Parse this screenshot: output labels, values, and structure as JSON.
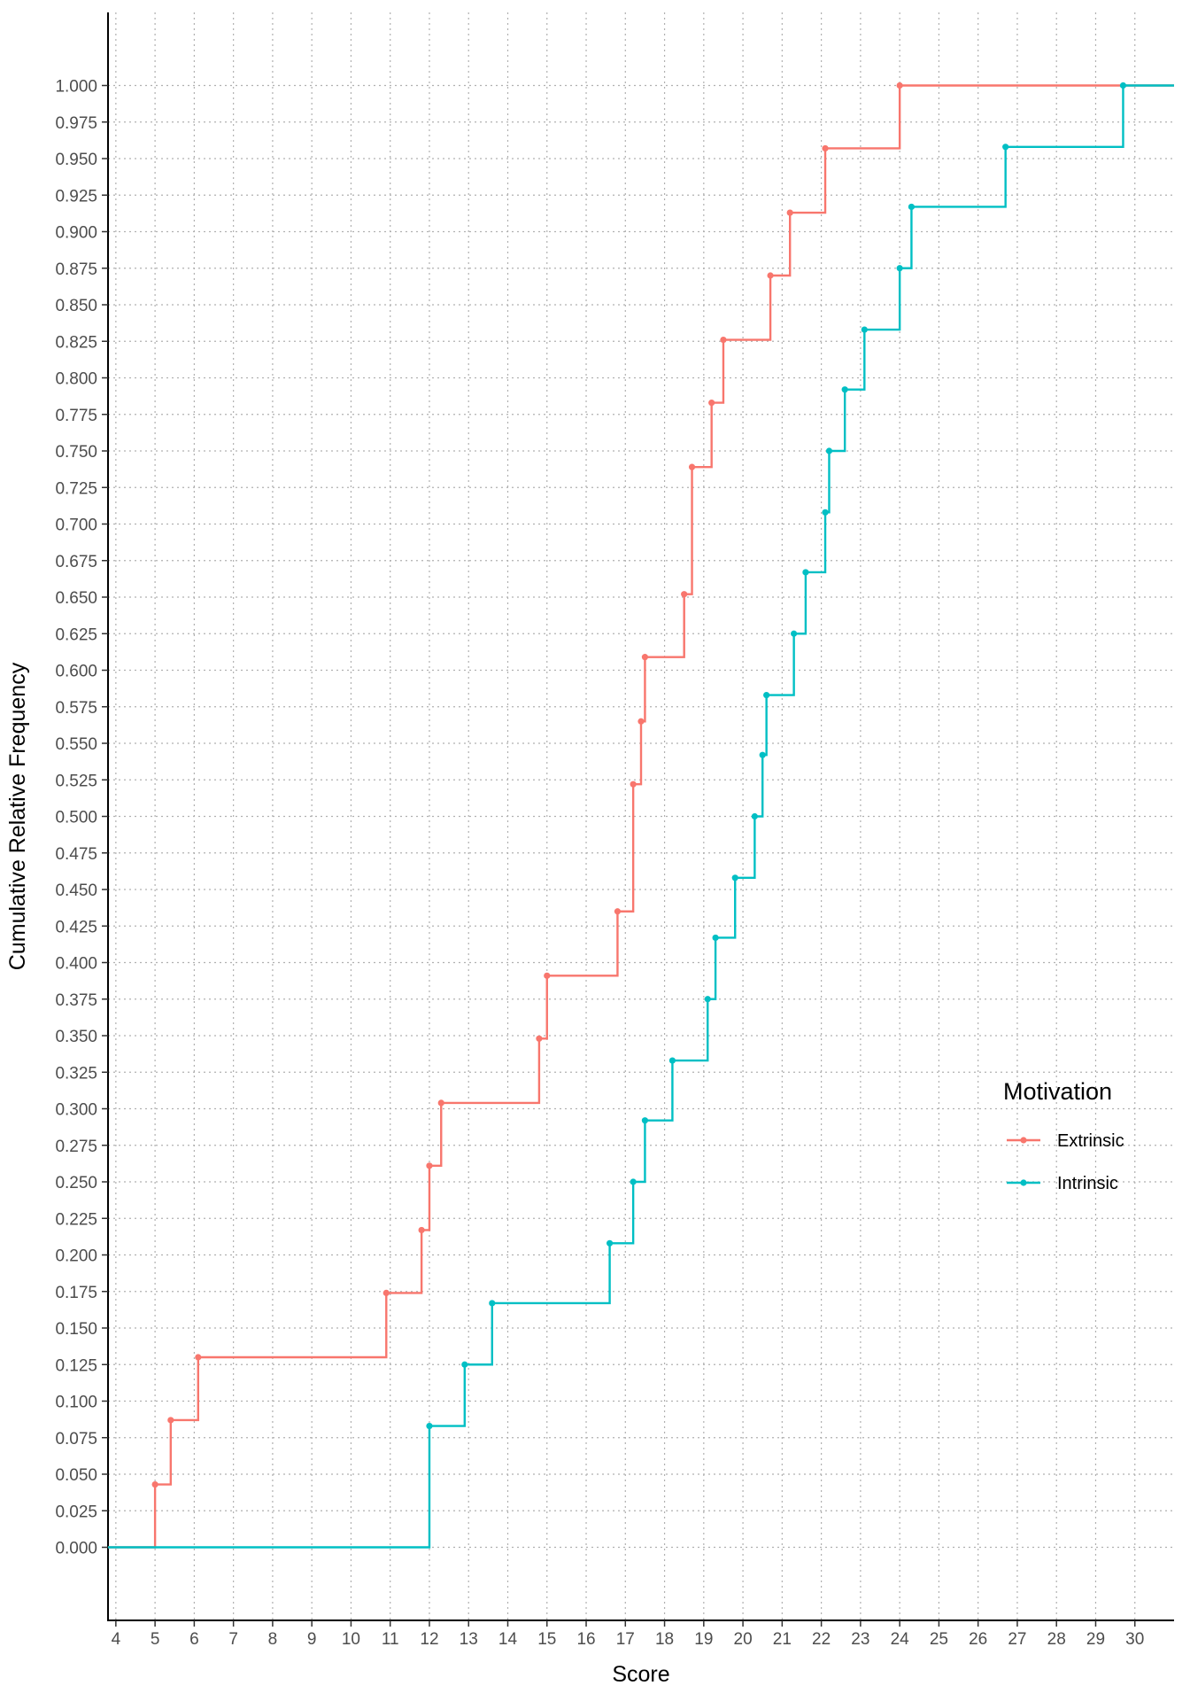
{
  "chart_data": {
    "type": "line",
    "subtype": "step (empirical cumulative distribution)",
    "xlabel": "Score",
    "ylabel": "Cumulative Relative Frequency",
    "xlim": [
      3.8,
      31
    ],
    "ylim": [
      -0.05,
      1.05
    ],
    "x_ticks": [
      4,
      5,
      6,
      7,
      8,
      9,
      10,
      11,
      12,
      13,
      14,
      15,
      16,
      17,
      18,
      19,
      20,
      21,
      22,
      23,
      24,
      25,
      26,
      27,
      28,
      29,
      30
    ],
    "y_ticks": [
      0.0,
      0.025,
      0.05,
      0.075,
      0.1,
      0.125,
      0.15,
      0.175,
      0.2,
      0.225,
      0.25,
      0.275,
      0.3,
      0.325,
      0.35,
      0.375,
      0.4,
      0.425,
      0.45,
      0.475,
      0.5,
      0.525,
      0.55,
      0.575,
      0.6,
      0.625,
      0.65,
      0.675,
      0.7,
      0.725,
      0.75,
      0.775,
      0.8,
      0.825,
      0.85,
      0.875,
      0.9,
      0.925,
      0.95,
      0.975,
      1.0
    ],
    "y_tick_labels": [
      "0.000",
      "0.025",
      "0.050",
      "0.075",
      "0.100",
      "0.125",
      "0.150",
      "0.175",
      "0.200",
      "0.225",
      "0.250",
      "0.275",
      "0.300",
      "0.325",
      "0.350",
      "0.375",
      "0.400",
      "0.425",
      "0.450",
      "0.475",
      "0.500",
      "0.525",
      "0.550",
      "0.575",
      "0.600",
      "0.625",
      "0.650",
      "0.675",
      "0.700",
      "0.725",
      "0.750",
      "0.775",
      "0.800",
      "0.825",
      "0.850",
      "0.875",
      "0.900",
      "0.925",
      "0.950",
      "0.975",
      "1.000"
    ],
    "grid": true,
    "legend": {
      "title": "Motivation",
      "placement": "right"
    },
    "series": [
      {
        "name": "Extrinsic",
        "color": "#F8766D",
        "points": [
          {
            "x": 5.0,
            "y": 0.043
          },
          {
            "x": 5.4,
            "y": 0.087
          },
          {
            "x": 6.1,
            "y": 0.13
          },
          {
            "x": 10.9,
            "y": 0.174
          },
          {
            "x": 11.8,
            "y": 0.217
          },
          {
            "x": 12.0,
            "y": 0.261
          },
          {
            "x": 12.3,
            "y": 0.304
          },
          {
            "x": 14.8,
            "y": 0.348
          },
          {
            "x": 15.0,
            "y": 0.391
          },
          {
            "x": 16.8,
            "y": 0.435
          },
          {
            "x": 17.2,
            "y": 0.522
          },
          {
            "x": 17.4,
            "y": 0.565
          },
          {
            "x": 17.5,
            "y": 0.609
          },
          {
            "x": 18.5,
            "y": 0.652
          },
          {
            "x": 18.7,
            "y": 0.739
          },
          {
            "x": 19.2,
            "y": 0.783
          },
          {
            "x": 19.5,
            "y": 0.826
          },
          {
            "x": 20.7,
            "y": 0.87
          },
          {
            "x": 21.2,
            "y": 0.913
          },
          {
            "x": 22.1,
            "y": 0.957
          },
          {
            "x": 24.0,
            "y": 1.0
          }
        ]
      },
      {
        "name": "Intrinsic",
        "color": "#00BFC4",
        "points": [
          {
            "x": 12.0,
            "y": 0.083
          },
          {
            "x": 12.9,
            "y": 0.125
          },
          {
            "x": 13.6,
            "y": 0.167
          },
          {
            "x": 16.6,
            "y": 0.208
          },
          {
            "x": 17.2,
            "y": 0.25
          },
          {
            "x": 17.5,
            "y": 0.292
          },
          {
            "x": 18.2,
            "y": 0.333
          },
          {
            "x": 19.1,
            "y": 0.375
          },
          {
            "x": 19.3,
            "y": 0.417
          },
          {
            "x": 19.8,
            "y": 0.458
          },
          {
            "x": 20.3,
            "y": 0.5
          },
          {
            "x": 20.5,
            "y": 0.542
          },
          {
            "x": 20.6,
            "y": 0.583
          },
          {
            "x": 21.3,
            "y": 0.625
          },
          {
            "x": 21.6,
            "y": 0.667
          },
          {
            "x": 22.1,
            "y": 0.708
          },
          {
            "x": 22.2,
            "y": 0.75
          },
          {
            "x": 22.6,
            "y": 0.792
          },
          {
            "x": 23.1,
            "y": 0.833
          },
          {
            "x": 24.0,
            "y": 0.875
          },
          {
            "x": 24.3,
            "y": 0.917
          },
          {
            "x": 26.7,
            "y": 0.958
          },
          {
            "x": 29.7,
            "y": 1.0
          }
        ]
      }
    ]
  }
}
